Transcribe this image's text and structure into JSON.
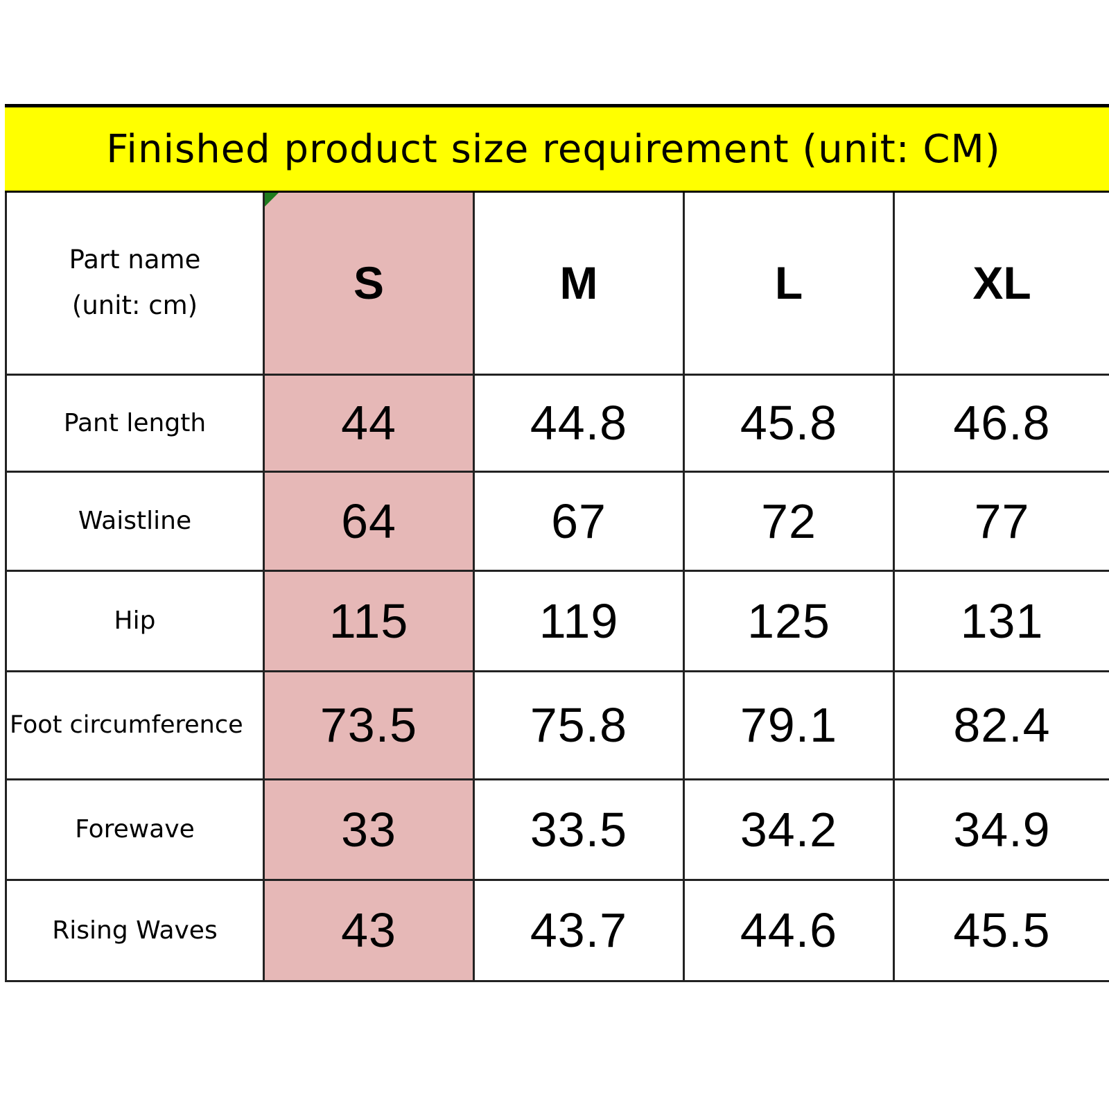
{
  "title": "Finished product size requirement (unit: CM)",
  "header": {
    "part_name_line1": "Part name",
    "part_name_line2": "(unit: cm)",
    "sizes": [
      "S",
      "M",
      "L",
      "XL"
    ]
  },
  "rows": [
    {
      "label": "Pant length",
      "values": [
        "44",
        "44.8",
        "45.8",
        "46.8"
      ]
    },
    {
      "label": "Waistline",
      "values": [
        "64",
        "67",
        "72",
        "77"
      ]
    },
    {
      "label": "Hip",
      "values": [
        "115",
        "119",
        "125",
        "131"
      ]
    },
    {
      "label": "Foot circumference",
      "values": [
        "73.5",
        "75.8",
        "79.1",
        "82.4"
      ]
    },
    {
      "label": "Forewave",
      "values": [
        "33",
        "33.5",
        "34.2",
        "34.9"
      ]
    },
    {
      "label": "Rising Waves",
      "values": [
        "43",
        "43.7",
        "44.6",
        "45.5"
      ]
    }
  ],
  "colors": {
    "title_background": "#ffff00",
    "highlight_column": "#e6b8b7"
  }
}
